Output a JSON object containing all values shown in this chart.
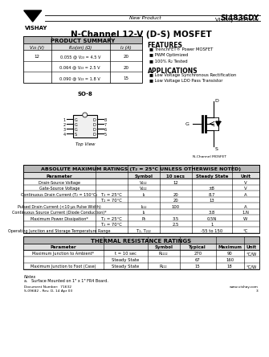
{
  "bg_color": "#ffffff",
  "title": "SI4836DY",
  "subtitle": "Vishay Siliconix",
  "new_product": "New Product",
  "main_title": "N-Channel 12-V (D-S) MOSFET",
  "ps_title": "PRODUCT SUMMARY",
  "ps_col1": "V₂₃ (V)",
  "ps_col2": "R₂₃(on) (Ω)",
  "ps_col3": "I₂ (A)",
  "ps_rows": [
    [
      "12",
      "0.055 @ V₂₃ = 4.5 V",
      "20"
    ],
    [
      "",
      "0.064 @ V₂₃ = 2.5 V",
      "20"
    ],
    [
      "",
      "0.090 @ V₂₃ = 1.8 V",
      "15"
    ]
  ],
  "feat_title": "FEATURES",
  "features": [
    "TrenchFET® Power MOSFET",
    "PWM Optimized",
    "100% R₂ Tested"
  ],
  "app_title": "APPLICATIONS",
  "applications": [
    "Low Voltage Synchronous Rectification",
    "Low Voltage LDO Pass Transistor"
  ],
  "pkg_label": "SO-8",
  "pkg_view": "Top View",
  "mosfet_label": "N-Channel MOSFET",
  "abs_title": "ABSOLUTE MAXIMUM RATINGS (T₂ = 25°C UNLESS OTHERWISE NOTED)",
  "abs_hdr": [
    "Parameter",
    "Symbol",
    "10 secs",
    "Steady State",
    "Unit"
  ],
  "abs_rows": [
    [
      "Drain-Source Voltage",
      "",
      "V₂₂₂",
      "12",
      "",
      "V"
    ],
    [
      "Gate-Source Voltage",
      "",
      "V₂₂₂",
      "",
      "±8",
      "V"
    ],
    [
      "Continuous Drain Current (T₂ = 150°C₂",
      "T₂ = 25°C",
      "I₂",
      "20",
      "8.7",
      "A"
    ],
    [
      "",
      "T₂ = 70°C",
      "",
      "20",
      "13",
      ""
    ],
    [
      "Pulsed Drain Current (<10 μs Pulse Width)",
      "",
      "I₂₂₂",
      "100",
      "",
      "A"
    ],
    [
      "Continuous Source Current (Diode Conduction)*",
      "",
      "I₂",
      "",
      "3.8",
      "1.N"
    ],
    [
      "Maximum Power Dissipation*",
      "T₂ = 25°C",
      "P₂",
      "3.5",
      "0.5N",
      "W"
    ],
    [
      "",
      "T₂ = 70°C",
      "",
      "2.5",
      "1",
      ""
    ],
    [
      "Operating Junction and Storage Temperature Range",
      "",
      "T₂, T₂₂₂",
      "",
      "-55 to 150",
      "°C"
    ]
  ],
  "therm_title": "THERMAL RESISTANCE RATINGS",
  "therm_hdr": [
    "Parameter",
    "Symbol",
    "Typical",
    "Maximum",
    "Unit"
  ],
  "therm_rows": [
    [
      "Maximum Junction to Ambient*",
      "t = 10 sec",
      "R₂₂₂₂",
      "270",
      "90",
      "°C/W"
    ],
    [
      "",
      "Steady State",
      "",
      "67",
      "160",
      ""
    ],
    [
      "Maximum Junction to Foot (Case)",
      "Steady State",
      "R₂₂₂",
      "15",
      "18",
      "°C/W"
    ]
  ],
  "note": "Notes\na.   Surface Mounted on 1\" x 1\" FR4 Board.",
  "doc": "Document Number:  71632",
  "rev": "S-09682 - Rev. D, 14 Apr 03",
  "web": "www.vishay.com",
  "page": "3"
}
